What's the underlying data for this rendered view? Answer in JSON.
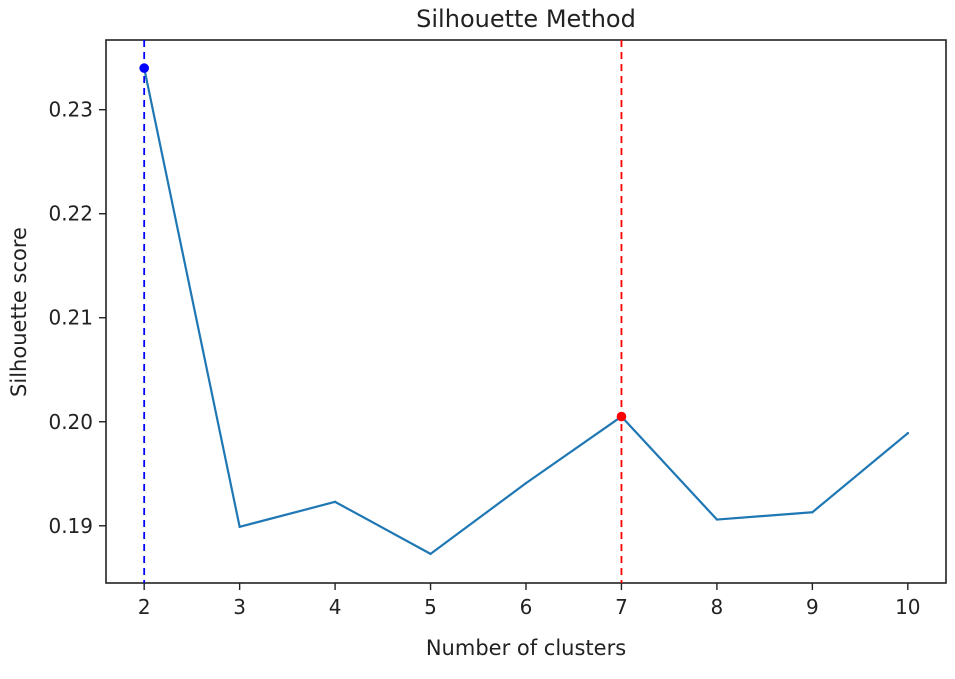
{
  "chart_data": {
    "type": "line",
    "title": "Silhouette Method",
    "xlabel": "Number of clusters",
    "ylabel": "Silhouette score",
    "x": [
      2,
      3,
      4,
      5,
      6,
      7,
      8,
      9,
      10
    ],
    "xlim": [
      1.6,
      10.4
    ],
    "ylim": [
      0.1845,
      0.2367
    ],
    "xticks": [
      2,
      3,
      4,
      5,
      6,
      7,
      8,
      9,
      10
    ],
    "yticks": [
      0.19,
      0.2,
      0.21,
      0.22,
      0.23
    ],
    "ytick_labels": [
      "0.19",
      "0.20",
      "0.21",
      "0.22",
      "0.23"
    ],
    "grid": false,
    "series": [
      {
        "values": [
          0.234,
          0.1899,
          0.1923,
          0.1873,
          0.1941,
          0.2005,
          0.1906,
          0.1913,
          0.1989
        ],
        "color": "#1f77b4"
      }
    ],
    "highlighted_points": [
      {
        "x": 2,
        "y": 0.234,
        "color": "#0000ff"
      },
      {
        "x": 7,
        "y": 0.2005,
        "color": "#ff0000"
      }
    ],
    "reference_lines": [
      {
        "x": 2,
        "color": "#0000ff",
        "style": "dashed"
      },
      {
        "x": 7,
        "color": "#ff0000",
        "style": "dashed"
      }
    ]
  }
}
